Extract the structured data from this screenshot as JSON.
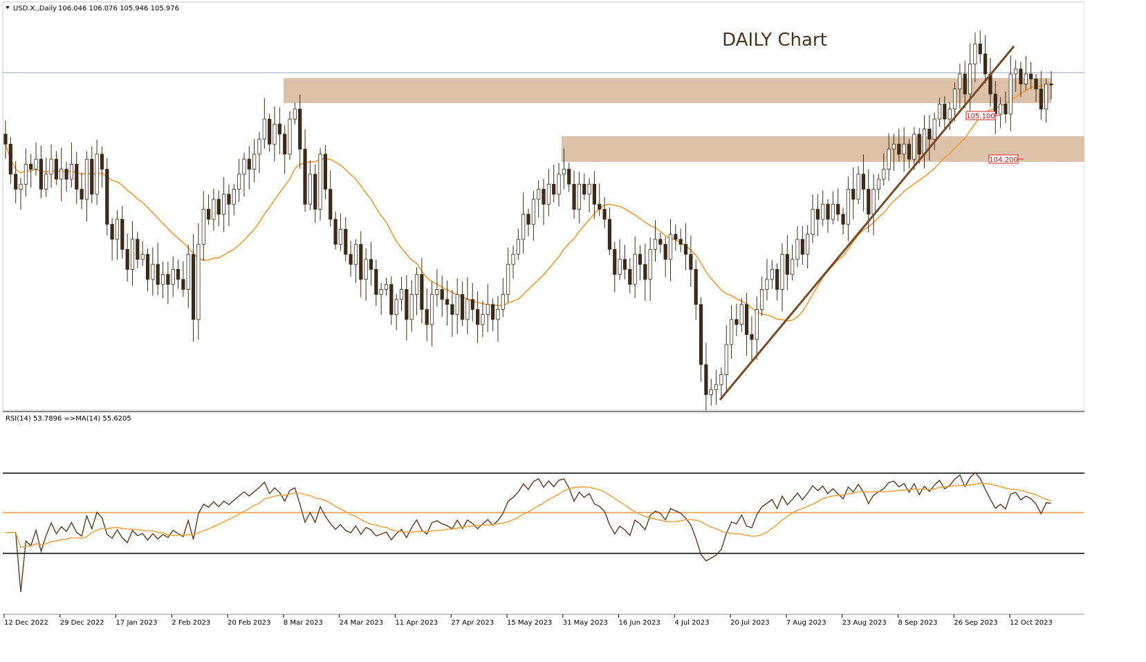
{
  "colors": {
    "background": "#ffffff",
    "candle_body": "#3b2a18",
    "candle_wick": "#3b2a18",
    "bull_body": "#ffffff",
    "ma_line": "#f29a2e",
    "zone_fill": "#d9bfa4",
    "trendline": "#7a4a24",
    "rsi_line": "#5a3a1e",
    "rsi_mid_line": "#f08020",
    "rsi_bounds": "#000000",
    "price_label_border": "#e0201a",
    "price_label_text": "#cc1010",
    "grid_sep": "#8a8a8a"
  },
  "header": {
    "symbol": "USD.X.,Daily",
    "ohlc": "106.046 106.076 105.946 105.976"
  },
  "chart_title": "DAILY Chart",
  "rsi_header": "RSI(14) 53.7896  =>MA(14) 55.6205",
  "price_labels": [
    "105.100",
    "104.200"
  ],
  "x_axis_labels": [
    "12 Dec 2022",
    "29 Dec 2022",
    "17 Jan 2023",
    "2 Feb 2023",
    "20 Feb 2023",
    "8 Mar 2023",
    "24 Mar 2023",
    "11 Apr 2023",
    "27 Apr 2023",
    "15 May 2023",
    "31 May 2023",
    "16 Jun 2023",
    "4 Jul 2023",
    "20 Jul 2023",
    "7 Aug 2023",
    "23 Aug 2023",
    "8 Sep 2023",
    "26 Sep 2023",
    "12 Oct 2023"
  ],
  "chart_data": [
    {
      "type": "candlestick",
      "title": "DAILY Chart",
      "symbol": "USD.X.,Daily",
      "timeframe": "Daily",
      "last_ohlc": {
        "open": 106.046,
        "high": 106.076,
        "low": 105.946,
        "close": 105.976
      },
      "overlay": "moving average (orange line)",
      "resistance_zones": [
        [
          105.1,
          106.0
        ],
        [
          104.2,
          105.1
        ]
      ],
      "levels": [
        105.1,
        104.2
      ],
      "trendline": "rising support from Jul 2023 low to Oct 2023 high",
      "y_approx_range": [
        99.6,
        107.4
      ],
      "closes": [
        104.8,
        104.2,
        103.9,
        104.0,
        104.4,
        104.3,
        104.5,
        103.9,
        104.2,
        104.5,
        104.1,
        104.3,
        104.1,
        104.4,
        103.9,
        103.7,
        104.5,
        103.8,
        104.6,
        104.3,
        103.2,
        102.9,
        103.3,
        102.7,
        102.3,
        102.9,
        102.5,
        102.6,
        102.1,
        102.4,
        102.0,
        102.2,
        102.0,
        102.3,
        102.1,
        101.9,
        102.6,
        101.3,
        102.8,
        103.5,
        103.3,
        103.7,
        103.4,
        103.8,
        103.6,
        103.9,
        104.2,
        104.5,
        104.3,
        104.6,
        104.9,
        105.3,
        104.8,
        105.2,
        105.0,
        104.6,
        105.3,
        105.5,
        104.7,
        103.6,
        104.2,
        103.5,
        104.6,
        103.9,
        103.3,
        102.8,
        103.1,
        102.6,
        102.4,
        102.8,
        102.1,
        102.5,
        102.3,
        101.8,
        101.9,
        102.0,
        101.4,
        101.7,
        101.9,
        101.3,
        101.8,
        102.2,
        101.5,
        101.2,
        101.8,
        101.9,
        101.7,
        101.6,
        101.4,
        101.8,
        101.3,
        101.7,
        101.5,
        101.2,
        101.4,
        101.6,
        101.3,
        101.5,
        101.8,
        102.4,
        102.6,
        102.9,
        103.4,
        103.2,
        103.7,
        103.9,
        103.6,
        104.0,
        103.8,
        104.2,
        104.3,
        104.0,
        103.5,
        104.0,
        103.8,
        104.0,
        103.6,
        103.5,
        103.3,
        102.7,
        102.2,
        102.5,
        102.3,
        102.0,
        102.6,
        102.4,
        102.1,
        102.7,
        102.9,
        102.8,
        102.5,
        103.0,
        102.9,
        102.8,
        102.6,
        102.3,
        101.6,
        100.4,
        99.8,
        99.9,
        100.0,
        100.2,
        100.8,
        101.3,
        101.2,
        101.6,
        101.0,
        100.9,
        101.5,
        101.9,
        102.1,
        102.3,
        101.9,
        102.6,
        102.2,
        102.5,
        102.9,
        102.6,
        103.0,
        103.5,
        103.3,
        103.6,
        103.3,
        103.6,
        103.4,
        103.2,
        103.9,
        103.7,
        104.2,
        103.9,
        103.4,
        103.9,
        104.1,
        104.3,
        104.7,
        104.8,
        104.6,
        104.8,
        104.5,
        105.0,
        104.6,
        105.1,
        104.9,
        105.3,
        105.6,
        105.3,
        105.5,
        105.9,
        106.2,
        105.8,
        106.4,
        106.8,
        106.6,
        106.2,
        105.8,
        105.4,
        105.6,
        105.4,
        106.2,
        106.3,
        106.0,
        106.2,
        106.1,
        105.9,
        105.5,
        106.0,
        105.98
      ],
      "rsi": {
        "title": "RSI(14) 53.7896  =>MA(14) 55.6205",
        "rsi_value": 53.7896,
        "ma_value": 55.6205,
        "levels": [
          70,
          50,
          30
        ]
      },
      "x_tick_labels": [
        "12 Dec 2022",
        "29 Dec 2022",
        "17 Jan 2023",
        "2 Feb 2023",
        "20 Feb 2023",
        "8 Mar 2023",
        "24 Mar 2023",
        "11 Apr 2023",
        "27 Apr 2023",
        "15 May 2023",
        "31 May 2023",
        "16 Jun 2023",
        "4 Jul 2023",
        "20 Jul 2023",
        "7 Aug 2023",
        "23 Aug 2023",
        "8 Sep 2023",
        "26 Sep 2023",
        "12 Oct 2023"
      ]
    }
  ]
}
